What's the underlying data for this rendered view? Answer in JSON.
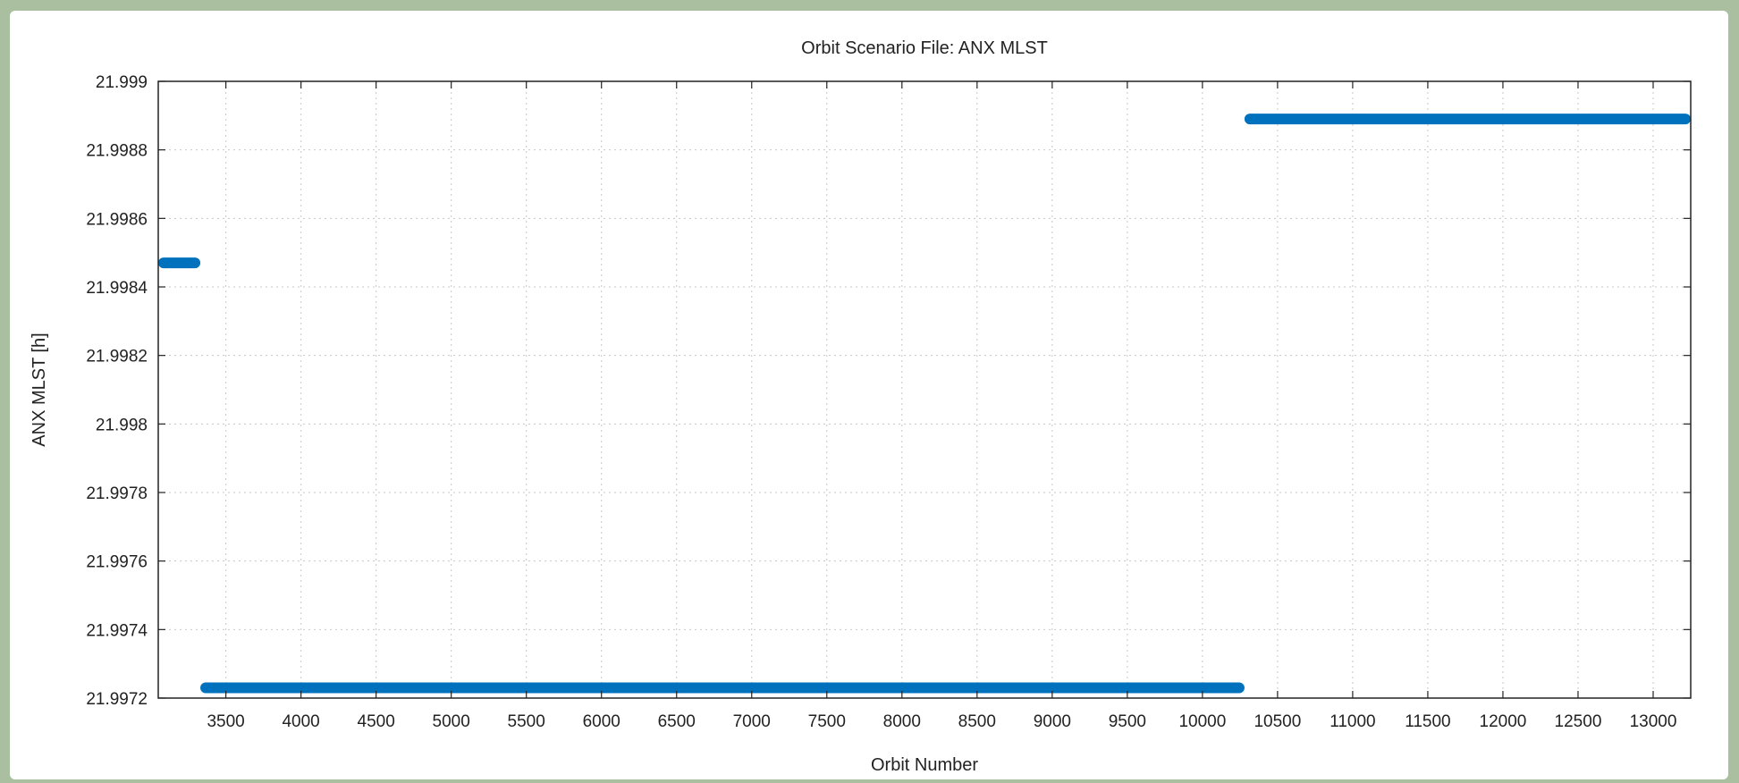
{
  "chart_data": {
    "type": "line",
    "title": "Orbit Scenario File: ANX MLST",
    "xlabel": "Orbit Number",
    "ylabel": "ANX MLST [h]",
    "xlim": [
      3050,
      13250
    ],
    "ylim": [
      21.9972,
      21.999
    ],
    "xticks": [
      3500,
      4000,
      4500,
      5000,
      5500,
      6000,
      6500,
      7000,
      7500,
      8000,
      8500,
      9000,
      9500,
      10000,
      10500,
      11000,
      11500,
      12000,
      12500,
      13000
    ],
    "yticks": [
      21.9972,
      21.9974,
      21.9976,
      21.9978,
      21.998,
      21.9982,
      21.9984,
      21.9986,
      21.9988,
      21.999
    ],
    "ytick_labels": [
      "21.9972",
      "21.9974",
      "21.9976",
      "21.9978",
      "21.998",
      "21.9982",
      "21.9984",
      "21.9986",
      "21.9988",
      "21.999"
    ],
    "grid": true,
    "color": "#0072bd",
    "series": [
      {
        "segments": [
          {
            "x": [
              3050,
              3330
            ],
            "y": [
              21.99847,
              21.99847
            ]
          },
          {
            "x": [
              3330,
              10280
            ],
            "y": [
              21.99723,
              21.99723
            ]
          },
          {
            "x": [
              10280,
              13250
            ],
            "y": [
              21.99889,
              21.99889
            ]
          }
        ]
      }
    ]
  }
}
